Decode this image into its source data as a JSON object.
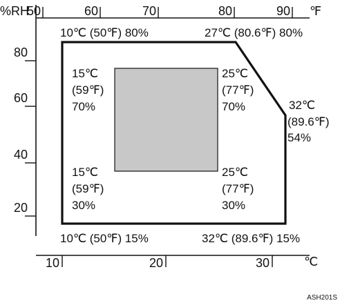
{
  "diagram": {
    "top_axis": {
      "unit_left": "%RH",
      "unit_right": "℉",
      "ticks": [
        "50",
        "60",
        "70",
        "80",
        "90"
      ]
    },
    "left_axis": {
      "ticks": [
        "80",
        "60",
        "40",
        "20"
      ]
    },
    "bottom_axis": {
      "ticks": [
        "10",
        "20",
        "30"
      ],
      "unit": "℃"
    },
    "outer_corners": {
      "top_left": "10℃ (50℉) 80%",
      "top_right": "27℃ (80.6℉) 80%",
      "right_temp": "32℃",
      "right_f": "(89.6℉)",
      "right_rh": "54%",
      "bottom_left": "10℃ (50℉) 15%",
      "bottom_right": "32℃ (89.6℉) 15%"
    },
    "inner_corners": {
      "tl_temp": "15℃",
      "tl_f": "(59℉)",
      "tl_rh": "70%",
      "tr_temp": "25℃",
      "tr_f": "(77℉)",
      "tr_rh": "70%",
      "bl_temp": "15℃",
      "bl_f": "(59℉)",
      "bl_rh": "30%",
      "br_temp": "25℃",
      "br_f": "(77℉)",
      "br_rh": "30%"
    },
    "colors": {
      "recommended_fill": "#c8c8c8",
      "line": "#111111"
    },
    "figure_code": "ASH201S"
  }
}
